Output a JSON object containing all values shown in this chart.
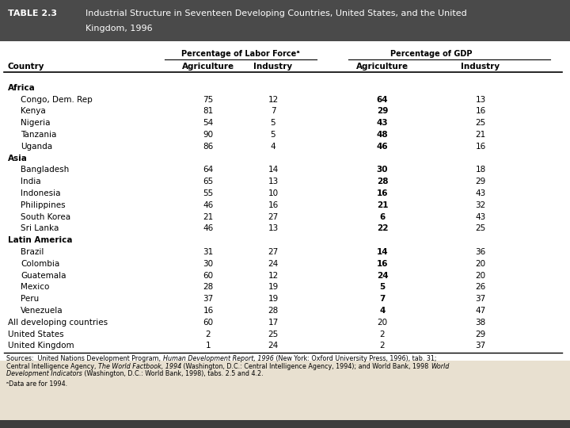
{
  "title_label": "TABLE 2.3",
  "title_text_line1": "Industrial Structure in Seventeen Developing Countries, United States, and the United",
  "title_text_line2": "Kingdom, 1996",
  "header_bg": "#4a4a4a",
  "header_text_color": "#ffffff",
  "col_group1": "Percentage of Labor Forceᵃ",
  "col_group2": "Percentage of GDP",
  "col1": "Country",
  "col2": "Agriculture",
  "col3": "Industry",
  "col4": "Agriculture",
  "col5": "Industry",
  "rows": [
    {
      "type": "region",
      "country": "Africa",
      "lf_ag": "",
      "lf_in": "",
      "gdp_ag": "",
      "gdp_in": ""
    },
    {
      "type": "data",
      "country": "Congo, Dem. Rep",
      "lf_ag": "75",
      "lf_in": "12",
      "gdp_ag": "64",
      "gdp_in": "13"
    },
    {
      "type": "data",
      "country": "Kenya",
      "lf_ag": "81",
      "lf_in": "7",
      "gdp_ag": "29",
      "gdp_in": "16"
    },
    {
      "type": "data",
      "country": "Nigeria",
      "lf_ag": "54",
      "lf_in": "5",
      "gdp_ag": "43",
      "gdp_in": "25"
    },
    {
      "type": "data",
      "country": "Tanzania",
      "lf_ag": "90",
      "lf_in": "5",
      "gdp_ag": "48",
      "gdp_in": "21"
    },
    {
      "type": "data",
      "country": "Uganda",
      "lf_ag": "86",
      "lf_in": "4",
      "gdp_ag": "46",
      "gdp_in": "16"
    },
    {
      "type": "region",
      "country": "Asia",
      "lf_ag": "",
      "lf_in": "",
      "gdp_ag": "",
      "gdp_in": ""
    },
    {
      "type": "data",
      "country": "Bangladesh",
      "lf_ag": "64",
      "lf_in": "14",
      "gdp_ag": "30",
      "gdp_in": "18"
    },
    {
      "type": "data",
      "country": "India",
      "lf_ag": "65",
      "lf_in": "13",
      "gdp_ag": "28",
      "gdp_in": "29"
    },
    {
      "type": "data",
      "country": "Indonesia",
      "lf_ag": "55",
      "lf_in": "10",
      "gdp_ag": "16",
      "gdp_in": "43"
    },
    {
      "type": "data",
      "country": "Philippines",
      "lf_ag": "46",
      "lf_in": "16",
      "gdp_ag": "21",
      "gdp_in": "32"
    },
    {
      "type": "data",
      "country": "South Korea",
      "lf_ag": "21",
      "lf_in": "27",
      "gdp_ag": "6",
      "gdp_in": "43"
    },
    {
      "type": "data",
      "country": "Sri Lanka",
      "lf_ag": "46",
      "lf_in": "13",
      "gdp_ag": "22",
      "gdp_in": "25"
    },
    {
      "type": "region",
      "country": "Latin America",
      "lf_ag": "",
      "lf_in": "",
      "gdp_ag": "",
      "gdp_in": ""
    },
    {
      "type": "data",
      "country": "Brazil",
      "lf_ag": "31",
      "lf_in": "27",
      "gdp_ag": "14",
      "gdp_in": "36"
    },
    {
      "type": "data",
      "country": "Colombia",
      "lf_ag": "30",
      "lf_in": "24",
      "gdp_ag": "16",
      "gdp_in": "20"
    },
    {
      "type": "data",
      "country": "Guatemala",
      "lf_ag": "60",
      "lf_in": "12",
      "gdp_ag": "24",
      "gdp_in": "20"
    },
    {
      "type": "data",
      "country": "Mexico",
      "lf_ag": "28",
      "lf_in": "19",
      "gdp_ag": "5",
      "gdp_in": "26"
    },
    {
      "type": "data",
      "country": "Peru",
      "lf_ag": "37",
      "lf_in": "19",
      "gdp_ag": "7",
      "gdp_in": "37"
    },
    {
      "type": "data",
      "country": "Venezuela",
      "lf_ag": "16",
      "lf_in": "28",
      "gdp_ag": "4",
      "gdp_in": "47"
    },
    {
      "type": "summary",
      "country": "All developing countries",
      "lf_ag": "60",
      "lf_in": "17",
      "gdp_ag": "20",
      "gdp_in": "38"
    },
    {
      "type": "summary",
      "country": "United States",
      "lf_ag": "2",
      "lf_in": "25",
      "gdp_ag": "2",
      "gdp_in": "29"
    },
    {
      "type": "summary",
      "country": "United Kingdom",
      "lf_ag": "1",
      "lf_in": "24",
      "gdp_ag": "2",
      "gdp_in": "37"
    }
  ],
  "bg_color": "#e8e0d0",
  "table_bg": "#ffffff",
  "bottom_bar_color": "#3d3d3d"
}
